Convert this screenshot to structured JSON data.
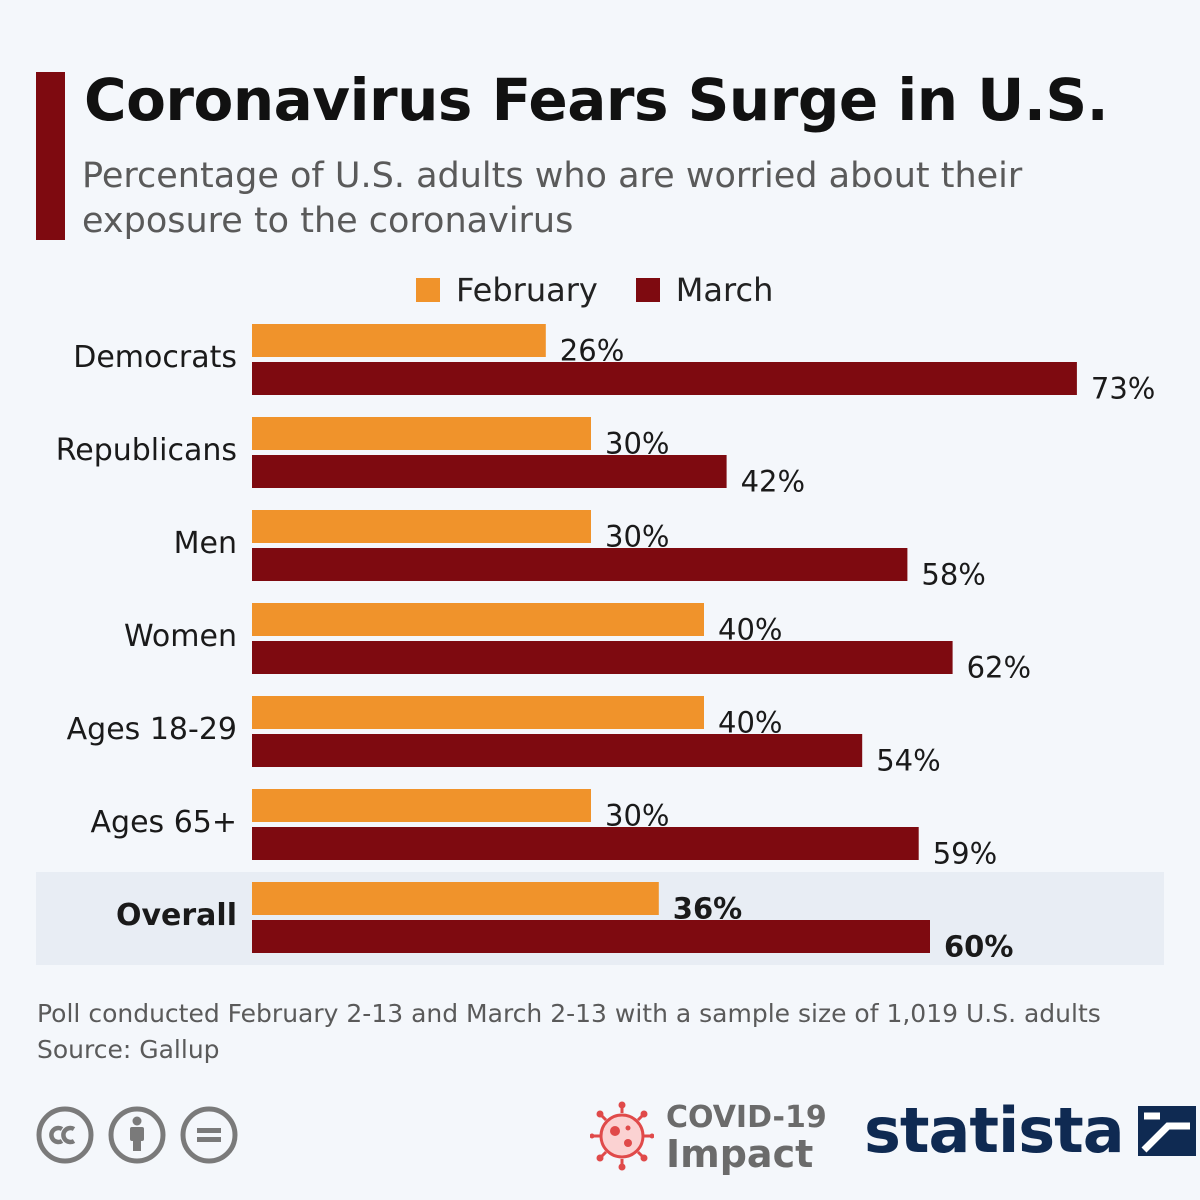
{
  "title": "Coronavirus Fears Surge in U.S.",
  "subtitle": "Percentage of U.S. adults who are worried about their exposure to the coronavirus",
  "colors": {
    "february": "#f0932b",
    "march": "#7e0a10",
    "highlight_band": "#e8edf4",
    "accent": "#7e0a10"
  },
  "chart_data": {
    "type": "bar",
    "orientation": "horizontal",
    "categories": [
      "Democrats",
      "Republicans",
      "Men",
      "Women",
      "Ages 18-29",
      "Ages 65+",
      "Overall"
    ],
    "highlighted_category": "Overall",
    "series": [
      {
        "name": "February",
        "values": [
          26,
          30,
          30,
          40,
          40,
          30,
          36
        ]
      },
      {
        "name": "March",
        "values": [
          73,
          42,
          58,
          62,
          54,
          59,
          60
        ]
      }
    ],
    "value_suffix": "%",
    "xlim": [
      0,
      100
    ],
    "grid": false,
    "legend_position": "top"
  },
  "footer": {
    "note": "Poll conducted February 2-13 and March 2-13 with a sample size of 1,019 U.S. adults",
    "source": "Source: Gallup"
  },
  "covid_badge": {
    "line1": "COVID-19",
    "line2": "Impact"
  },
  "brand": {
    "name": "statista"
  },
  "license_icons": [
    "creative-commons-icon",
    "attribution-icon",
    "no-derivatives-icon"
  ]
}
